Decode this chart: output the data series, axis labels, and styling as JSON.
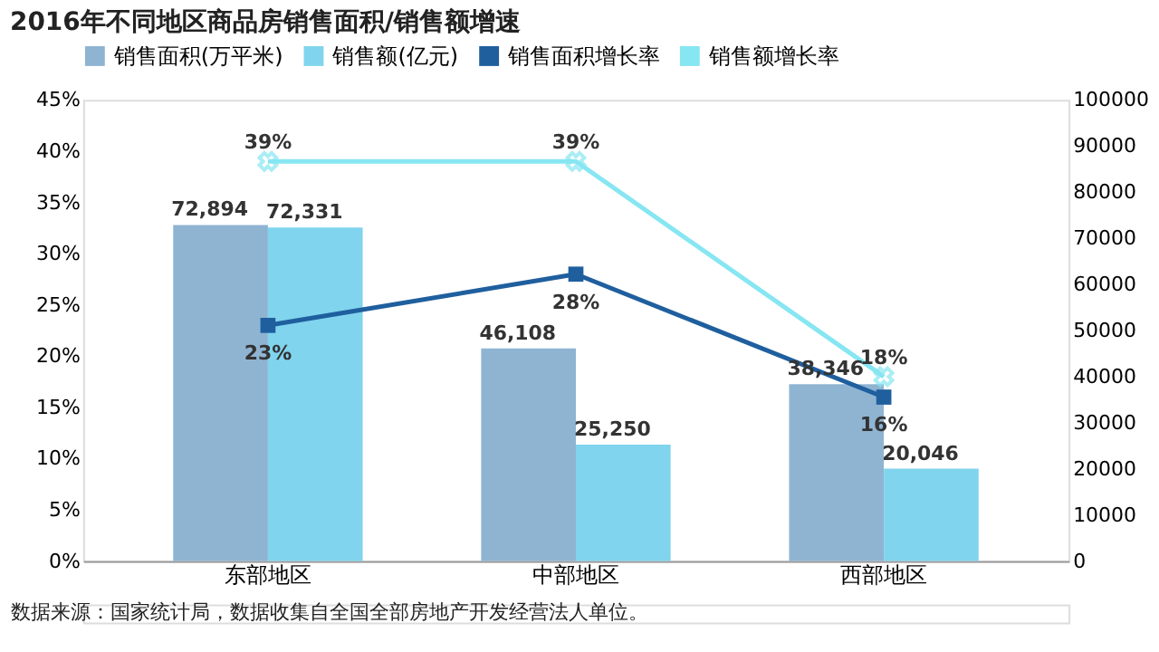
{
  "chart_data": {
    "type": "bar",
    "title": "2016年不同地区商品房销售面积/销售额增速",
    "categories": [
      "东部地区",
      "中部地区",
      "西部地区"
    ],
    "series": [
      {
        "name": "销售面积(万平米)",
        "axis": "y2",
        "color": "#8fb4d2",
        "values": [
          72894,
          46108,
          38346
        ],
        "value_labels": [
          "72,894",
          "46,108",
          "38,346"
        ]
      },
      {
        "name": "销售额(亿元)",
        "axis": "y2",
        "color": "#80d4ee",
        "values": [
          72331,
          25250,
          20046
        ],
        "value_labels": [
          "72,331",
          "25,250",
          "20,046"
        ]
      },
      {
        "name": "销售面积增长率",
        "type": "line",
        "axis": "y",
        "color": "#1f5f9e",
        "marker": "square",
        "values": [
          23,
          28,
          16
        ],
        "value_labels": [
          "23%",
          "28%",
          "16%"
        ]
      },
      {
        "name": "销售额增长率",
        "type": "line",
        "axis": "y",
        "color": "#86e6f2",
        "marker": "cross",
        "values": [
          39,
          39,
          18
        ],
        "value_labels": [
          "39%",
          "39%",
          "18%"
        ]
      }
    ],
    "ylim": [
      0,
      45
    ],
    "yticks": [
      {
        "value": 0,
        "label": "0%"
      },
      {
        "value": 5,
        "label": "5%"
      },
      {
        "value": 10,
        "label": "10%"
      },
      {
        "value": 15,
        "label": "15%"
      },
      {
        "value": 20,
        "label": "20%"
      },
      {
        "value": 25,
        "label": "25%"
      },
      {
        "value": 30,
        "label": "30%"
      },
      {
        "value": 35,
        "label": "35%"
      },
      {
        "value": 40,
        "label": "40%"
      },
      {
        "value": 45,
        "label": "45%"
      }
    ],
    "y2lim": [
      0,
      100000
    ],
    "y2ticks": [
      0,
      10000,
      20000,
      30000,
      40000,
      50000,
      60000,
      70000,
      80000,
      90000,
      100000
    ],
    "legend": "top",
    "grid": false,
    "annotations": [
      "数据来源：国家统计局，数据收集自全国全部房地产开发经营法人单位。"
    ]
  }
}
